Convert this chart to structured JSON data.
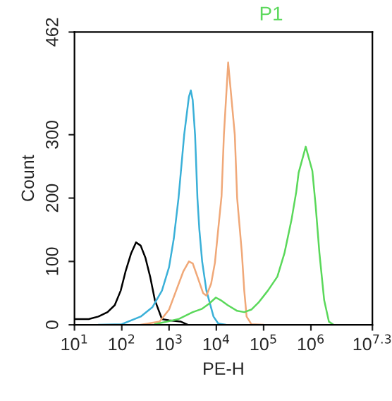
{
  "chart_data": {
    "type": "line",
    "title": "P1",
    "xlabel": "PE-H",
    "ylabel": "Count",
    "log": "x",
    "grid": false,
    "legend": false,
    "marker": "none",
    "line_style": "solid",
    "xlim": [
      10,
      19952623
    ],
    "xticks": [
      {
        "value": 10,
        "label": "10$^{1}$"
      },
      {
        "value": 100,
        "label": "10$^{2}$"
      },
      {
        "value": 1000,
        "label": "10$^{3}$"
      },
      {
        "value": 10000,
        "label": "10$^{4}$"
      },
      {
        "value": 100000,
        "label": "10$^{5}$"
      },
      {
        "value": 1000000,
        "label": "10$^{6}$"
      },
      {
        "value": 19952623,
        "label": "10$^{7.3}$"
      }
    ],
    "ylim": [
      0,
      462
    ],
    "yticks": [
      0,
      100,
      200,
      300,
      462
    ],
    "series": [
      {
        "color": "#000000",
        "x": [
          10,
          20,
          32,
          50,
          71,
          95,
          120,
          158,
          200,
          251,
          316,
          398,
          501,
          708,
          1000,
          1778,
          2512
        ],
        "values": [
          9,
          9,
          13,
          20,
          31,
          54,
          84,
          113,
          130,
          125,
          106,
          76,
          39,
          9,
          7,
          5,
          0
        ]
      },
      {
        "color": "#3ab0d8",
        "x": [
          32,
          100,
          251,
          447,
          708,
          1000,
          1259,
          1585,
          2089,
          2630,
          2884,
          3162,
          3548,
          3981,
          4365,
          5012,
          6166,
          8710,
          10965,
          15849
        ],
        "values": [
          0,
          1,
          13,
          28,
          54,
          91,
          136,
          200,
          300,
          360,
          370,
          355,
          300,
          200,
          151,
          100,
          54,
          13,
          2,
          0
        ]
      },
      {
        "color": "#f0a878",
        "x": [
          251,
          631,
          1000,
          1413,
          1995,
          2630,
          3162,
          3981,
          5248,
          6166,
          7762,
          9333,
          10965,
          12882,
          14454,
          17783,
          24547,
          27542,
          34674,
          38905,
          43652,
          54954,
          100000
        ],
        "values": [
          0,
          5,
          24,
          54,
          84,
          100,
          97,
          76,
          50,
          46,
          65,
          98,
          151,
          203,
          300,
          414,
          300,
          200,
          113,
          54,
          13,
          1,
          0
        ]
      },
      {
        "color": "#5ad85a",
        "x": [
          501,
          1585,
          3162,
          4898,
          6918,
          9772,
          12303,
          17378,
          27542,
          38905,
          54954,
          77625,
          123027,
          194984,
          275423,
          389045,
          489779,
          549541,
          776247,
          1071519,
          1258925,
          1513561,
          1905461,
          2398833,
          3019952
        ],
        "values": [
          1,
          9,
          20,
          25,
          33,
          43,
          39,
          31,
          22,
          20,
          24,
          35,
          54,
          76,
          113,
          166,
          210,
          240,
          281,
          243,
          188,
          113,
          39,
          5,
          0
        ]
      }
    ]
  }
}
